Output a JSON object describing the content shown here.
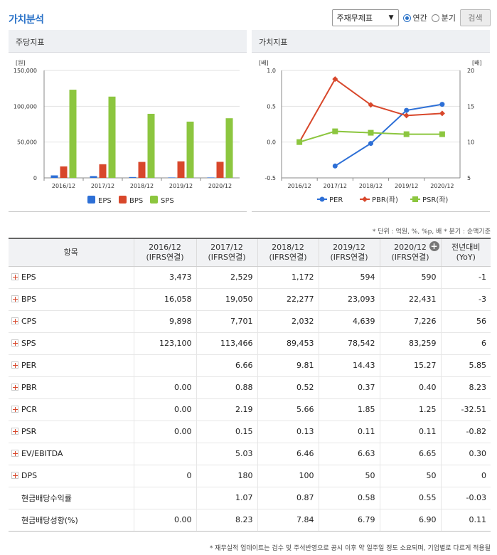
{
  "header": {
    "title": "가치분석",
    "select_value": "주재무제표",
    "radio_annual": "연간",
    "radio_quarter": "분기",
    "search_label": "검색",
    "accent_color": "#2a72c8"
  },
  "left_panel": {
    "title": "주당지표"
  },
  "right_panel": {
    "title": "가치지표"
  },
  "chart_data": [
    {
      "type": "bar",
      "title": "주당지표",
      "unit_label": "[원]",
      "categories": [
        "2016/12",
        "2017/12",
        "2018/12",
        "2019/12",
        "2020/12"
      ],
      "series": [
        {
          "name": "EPS",
          "color": "#2d6fd6",
          "values": [
            3473,
            2529,
            1172,
            594,
            590
          ]
        },
        {
          "name": "BPS",
          "color": "#d8472b",
          "values": [
            16058,
            19050,
            22277,
            23093,
            22431
          ]
        },
        {
          "name": "SPS",
          "color": "#8cc63f",
          "values": [
            123100,
            113466,
            89453,
            78542,
            83259
          ]
        }
      ],
      "ylim": [
        0,
        150000
      ],
      "yticks": [
        "0",
        "50,000",
        "100,000",
        "150,000"
      ],
      "grid": true,
      "legend": "bottom"
    },
    {
      "type": "line",
      "title": "가치지표",
      "left_unit_label": "[배]",
      "right_unit_label": "[배]",
      "categories": [
        "2016/12",
        "2017/12",
        "2018/12",
        "2019/12",
        "2020/12"
      ],
      "series": [
        {
          "name": "PER",
          "color": "#2d6fd6",
          "axis": "right",
          "values": [
            null,
            6.66,
            9.81,
            14.43,
            15.27
          ]
        },
        {
          "name": "PBR(좌)",
          "color": "#d8472b",
          "axis": "left",
          "values": [
            0.0,
            0.88,
            0.52,
            0.37,
            0.4
          ]
        },
        {
          "name": "PSR(좌)",
          "color": "#8cc63f",
          "axis": "left",
          "values": [
            0.0,
            0.15,
            0.13,
            0.11,
            0.11
          ]
        }
      ],
      "ylim_left": [
        -0.5,
        1.0
      ],
      "ylim_right": [
        5,
        20
      ],
      "yticks_left": [
        "-0.5",
        "0.0",
        "0.5",
        "1.0"
      ],
      "yticks_right": [
        "5",
        "10",
        "15",
        "20"
      ],
      "grid": true,
      "legend": "bottom"
    }
  ],
  "note": "* 단위 : 억원, %, %p, 배   * 분기 : 순액기준",
  "table": {
    "headers": [
      {
        "line1": "항목",
        "line2": ""
      },
      {
        "line1": "2016/12",
        "line2": "(IFRS연결)"
      },
      {
        "line1": "2017/12",
        "line2": "(IFRS연결)"
      },
      {
        "line1": "2018/12",
        "line2": "(IFRS연결)"
      },
      {
        "line1": "2019/12",
        "line2": "(IFRS연결)"
      },
      {
        "line1": "2020/12",
        "line2": "(IFRS연결)"
      },
      {
        "line1": "전년대비",
        "line2": "(YoY)"
      }
    ],
    "rows": [
      {
        "label": "EPS",
        "expand": true,
        "values": [
          "3,473",
          "2,529",
          "1,172",
          "594",
          "590"
        ],
        "yoy": "-1",
        "yoy_neg": true
      },
      {
        "label": "BPS",
        "expand": true,
        "values": [
          "16,058",
          "19,050",
          "22,277",
          "23,093",
          "22,431"
        ],
        "yoy": "-3",
        "yoy_neg": true
      },
      {
        "label": "CPS",
        "expand": true,
        "values": [
          "9,898",
          "7,701",
          "2,032",
          "4,639",
          "7,226"
        ],
        "yoy": "56",
        "yoy_neg": false
      },
      {
        "label": "SPS",
        "expand": true,
        "values": [
          "123,100",
          "113,466",
          "89,453",
          "78,542",
          "83,259"
        ],
        "yoy": "6",
        "yoy_neg": false
      },
      {
        "label": "PER",
        "expand": true,
        "values": [
          "",
          "6.66",
          "9.81",
          "14.43",
          "15.27"
        ],
        "yoy": "5.85",
        "yoy_neg": false
      },
      {
        "label": "PBR",
        "expand": true,
        "values": [
          "0.00",
          "0.88",
          "0.52",
          "0.37",
          "0.40"
        ],
        "yoy": "8.23",
        "yoy_neg": false
      },
      {
        "label": "PCR",
        "expand": true,
        "values": [
          "0.00",
          "2.19",
          "5.66",
          "1.85",
          "1.25"
        ],
        "yoy": "-32.51",
        "yoy_neg": true
      },
      {
        "label": "PSR",
        "expand": true,
        "values": [
          "0.00",
          "0.15",
          "0.13",
          "0.11",
          "0.11"
        ],
        "yoy": "-0.82",
        "yoy_neg": true
      },
      {
        "label": "EV/EBITDA",
        "expand": true,
        "values": [
          "",
          "5.03",
          "6.46",
          "6.63",
          "6.65"
        ],
        "yoy": "0.30",
        "yoy_neg": false
      },
      {
        "label": "DPS",
        "expand": true,
        "values": [
          "0",
          "180",
          "100",
          "50",
          "50"
        ],
        "yoy": "0",
        "yoy_neg": false
      },
      {
        "label": "현금배당수익률",
        "expand": false,
        "values": [
          "",
          "1.07",
          "0.87",
          "0.58",
          "0.55"
        ],
        "yoy": "-0.03",
        "yoy_neg": true
      },
      {
        "label": "현금배당성향(%)",
        "expand": false,
        "values": [
          "0.00",
          "8.23",
          "7.84",
          "6.79",
          "6.90"
        ],
        "yoy": "0.11",
        "yoy_neg": false
      }
    ]
  },
  "footer": "* 재무실적 업데이트는 검수 및 주석반영으로 공시 이후 약 일주일 정도 소요되며, 기업별로 다르게 적용될"
}
